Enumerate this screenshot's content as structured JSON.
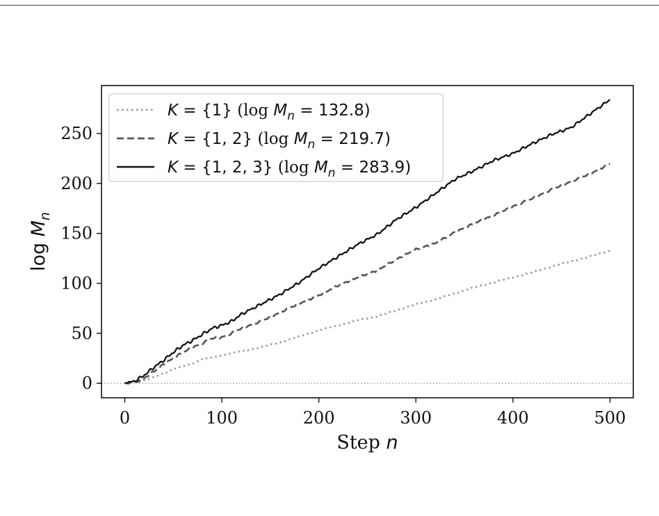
{
  "chart_data": {
    "type": "line",
    "xlabel": "Step n",
    "ylabel": "log Mn",
    "xlim": [
      -24,
      524
    ],
    "ylim": [
      -14.5,
      298
    ],
    "grid": false,
    "legend_position": "top-left",
    "x_ticks": [
      {
        "value": 0,
        "label": "0"
      },
      {
        "value": 100,
        "label": "100"
      },
      {
        "value": 200,
        "label": "200"
      },
      {
        "value": 300,
        "label": "300"
      },
      {
        "value": 400,
        "label": "400"
      },
      {
        "value": 500,
        "label": "500"
      }
    ],
    "y_ticks": [
      {
        "value": 0,
        "label": "0"
      },
      {
        "value": 50,
        "label": "50"
      },
      {
        "value": 100,
        "label": "100"
      },
      {
        "value": 150,
        "label": "150"
      },
      {
        "value": 200,
        "label": "200"
      },
      {
        "value": 250,
        "label": "250"
      }
    ],
    "reference_line": {
      "y": 0,
      "style": "dotted",
      "color": "#999999"
    },
    "series": [
      {
        "name": "K = {1} (log Mn = 132.8)",
        "legend_k": "{1}",
        "legend_value": "132.8",
        "color": "#999999",
        "style": "dotted",
        "points": [
          [
            0,
            0
          ],
          [
            10,
            1
          ],
          [
            20,
            3
          ],
          [
            30,
            6
          ],
          [
            40,
            10
          ],
          [
            50,
            14
          ],
          [
            60,
            17
          ],
          [
            70,
            20
          ],
          [
            80,
            24
          ],
          [
            100,
            28
          ],
          [
            120,
            32
          ],
          [
            140,
            36
          ],
          [
            160,
            41
          ],
          [
            180,
            47
          ],
          [
            200,
            53
          ],
          [
            220,
            58
          ],
          [
            240,
            63
          ],
          [
            260,
            67
          ],
          [
            280,
            73
          ],
          [
            300,
            79
          ],
          [
            320,
            84
          ],
          [
            340,
            90
          ],
          [
            360,
            96
          ],
          [
            380,
            101
          ],
          [
            400,
            106
          ],
          [
            420,
            111
          ],
          [
            440,
            117
          ],
          [
            460,
            122
          ],
          [
            480,
            127
          ],
          [
            500,
            132.8
          ]
        ]
      },
      {
        "name": "K = {1, 2} (log Mn = 219.7)",
        "legend_k": "{1, 2}",
        "legend_value": "219.7",
        "color": "#555555",
        "style": "dashed",
        "points": [
          [
            0,
            0
          ],
          [
            10,
            1
          ],
          [
            20,
            5
          ],
          [
            30,
            12
          ],
          [
            40,
            19
          ],
          [
            50,
            25
          ],
          [
            60,
            31
          ],
          [
            70,
            36
          ],
          [
            80,
            40
          ],
          [
            90,
            45
          ],
          [
            100,
            46
          ],
          [
            110,
            50
          ],
          [
            120,
            55
          ],
          [
            140,
            62
          ],
          [
            160,
            71
          ],
          [
            180,
            80
          ],
          [
            200,
            88
          ],
          [
            220,
            98
          ],
          [
            240,
            106
          ],
          [
            260,
            113
          ],
          [
            280,
            124
          ],
          [
            300,
            134
          ],
          [
            320,
            140
          ],
          [
            340,
            151
          ],
          [
            360,
            160
          ],
          [
            380,
            168
          ],
          [
            400,
            177
          ],
          [
            420,
            185
          ],
          [
            440,
            194
          ],
          [
            460,
            202
          ],
          [
            480,
            210
          ],
          [
            500,
            219.7
          ]
        ]
      },
      {
        "name": "K = {1, 2, 3} (log Mn = 283.9)",
        "legend_k": "{1, 2, 3}",
        "legend_value": "283.9",
        "color": "#111111",
        "style": "solid",
        "points": [
          [
            0,
            0
          ],
          [
            10,
            2
          ],
          [
            20,
            8
          ],
          [
            30,
            16
          ],
          [
            40,
            23
          ],
          [
            50,
            31
          ],
          [
            60,
            38
          ],
          [
            70,
            43
          ],
          [
            80,
            49
          ],
          [
            90,
            55
          ],
          [
            100,
            58
          ],
          [
            110,
            62
          ],
          [
            120,
            69
          ],
          [
            140,
            79
          ],
          [
            160,
            89
          ],
          [
            180,
            101
          ],
          [
            200,
            115
          ],
          [
            220,
            127
          ],
          [
            240,
            139
          ],
          [
            260,
            149
          ],
          [
            280,
            164
          ],
          [
            300,
            176
          ],
          [
            320,
            190
          ],
          [
            340,
            204
          ],
          [
            360,
            213
          ],
          [
            380,
            223
          ],
          [
            400,
            230
          ],
          [
            420,
            240
          ],
          [
            440,
            249
          ],
          [
            460,
            256
          ],
          [
            480,
            270
          ],
          [
            500,
            283.9
          ]
        ]
      }
    ]
  }
}
